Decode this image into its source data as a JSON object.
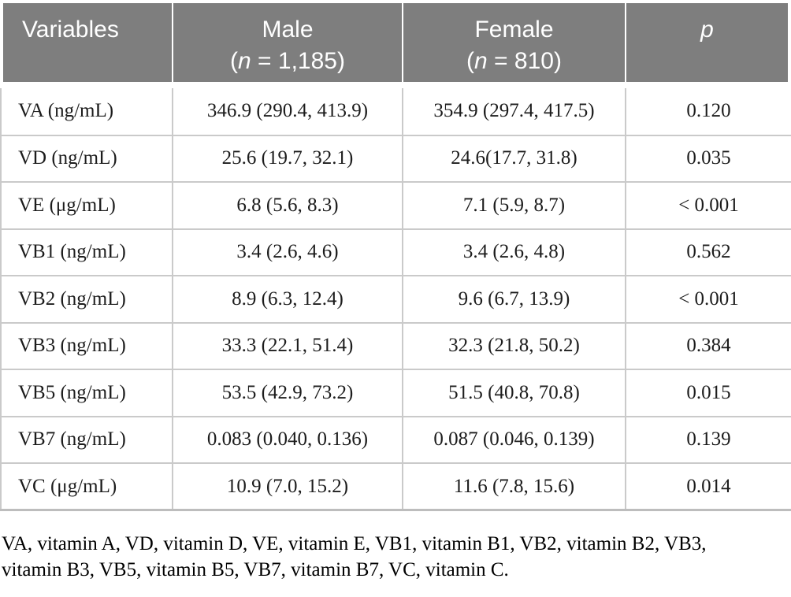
{
  "table": {
    "colors": {
      "header_bg": "#7e7e7e",
      "header_text": "#ffffff",
      "body_border": "#cacaca"
    },
    "header": {
      "variables": "Variables",
      "male": {
        "line1": "Male",
        "sub_open": "(",
        "sub_n": "n",
        "sub_rest": " = 1,185)"
      },
      "female": {
        "line1": "Female",
        "sub_open": "(",
        "sub_n": "n",
        "sub_rest": " = 810)"
      },
      "p": "p"
    },
    "rows": [
      {
        "variable": "VA (ng/mL)",
        "male": "346.9 (290.4, 413.9)",
        "female": "354.9 (297.4, 417.5)",
        "p": "0.120"
      },
      {
        "variable": "VD (ng/mL)",
        "male": "25.6 (19.7, 32.1)",
        "female": "24.6(17.7, 31.8)",
        "p": "0.035"
      },
      {
        "variable": "VE (μg/mL)",
        "male": "6.8 (5.6, 8.3)",
        "female": "7.1 (5.9, 8.7)",
        "p": "< 0.001"
      },
      {
        "variable": "VB1 (ng/mL)",
        "male": "3.4 (2.6, 4.6)",
        "female": "3.4 (2.6, 4.8)",
        "p": "0.562"
      },
      {
        "variable": "VB2 (ng/mL)",
        "male": "8.9 (6.3, 12.4)",
        "female": "9.6 (6.7, 13.9)",
        "p": "< 0.001"
      },
      {
        "variable": "VB3 (ng/mL)",
        "male": "33.3 (22.1, 51.4)",
        "female": "32.3 (21.8, 50.2)",
        "p": "0.384"
      },
      {
        "variable": "VB5 (ng/mL)",
        "male": "53.5 (42.9, 73.2)",
        "female": "51.5 (40.8, 70.8)",
        "p": "0.015"
      },
      {
        "variable": "VB7 (ng/mL)",
        "male": "0.083 (0.040, 0.136)",
        "female": "0.087 (0.046, 0.139)",
        "p": "0.139"
      },
      {
        "variable": "VC (μg/mL)",
        "male": "10.9 (7.0, 15.2)",
        "female": "11.6 (7.8, 15.6)",
        "p": "0.014"
      }
    ]
  },
  "footnote": {
    "line1": "VA, vitamin A, VD, vitamin D, VE, vitamin E, VB1, vitamin B1, VB2, vitamin B2, VB3,",
    "line2": "vitamin B3, VB5, vitamin B5, VB7, vitamin B7, VC, vitamin C."
  }
}
